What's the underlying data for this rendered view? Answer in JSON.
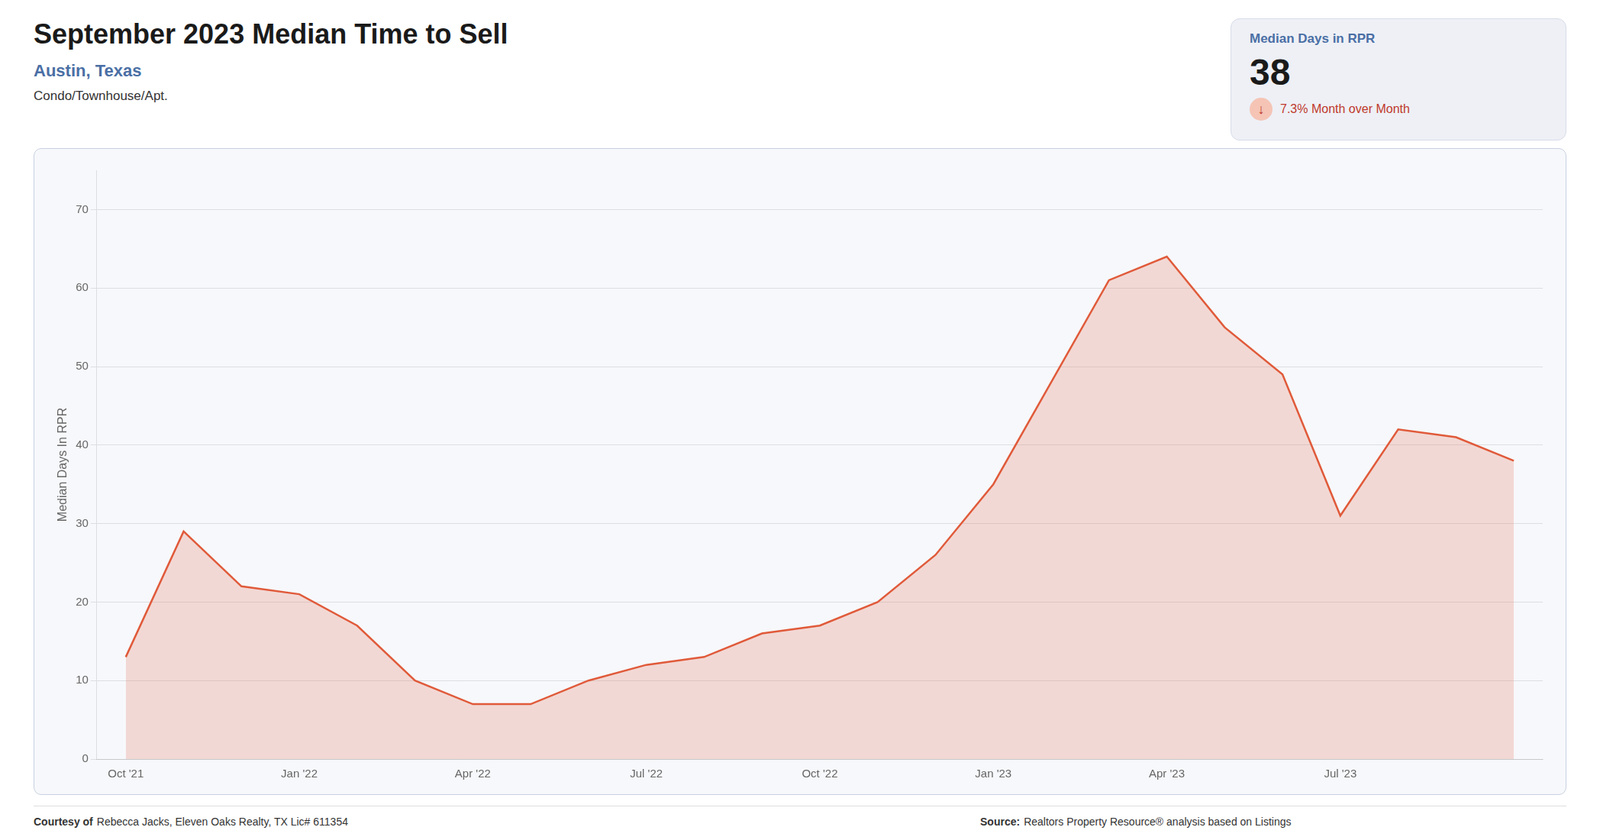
{
  "chart_data": {
    "type": "area",
    "title": "September 2023 Median Time to Sell",
    "subtitle": "Austin, Texas",
    "annotations": [
      "Condo/Townhouse/Apt.",
      "Median Days in RPR",
      "38",
      "↓",
      "7.3% Month over Month",
      "Courtesy of",
      "Rebecca Jacks, Eleven Oaks Realty, TX Lic# 611354",
      "Source:",
      "Realtors Property Resource® analysis based on Listings"
    ],
    "ylabel": "Median Days In RPR",
    "categories": [
      "Oct '21",
      null,
      null,
      "Jan '22",
      null,
      null,
      "Apr '22",
      null,
      null,
      "Jul '22",
      null,
      null,
      "Oct '22",
      null,
      null,
      "Jan '23",
      null,
      null,
      "Apr '23",
      null,
      null,
      "Jul '23",
      null,
      null,
      null
    ],
    "values": [
      13,
      29,
      22,
      21,
      17,
      10,
      7,
      7,
      10,
      12,
      13,
      16,
      17,
      20,
      26,
      35,
      48,
      61,
      64,
      55,
      49,
      31,
      42,
      41,
      38
    ],
    "color": "#e05a3a",
    "ylim": [
      0,
      75
    ],
    "yticks": [
      0,
      10,
      20,
      30,
      40,
      50,
      60,
      70
    ],
    "grid": true
  }
}
